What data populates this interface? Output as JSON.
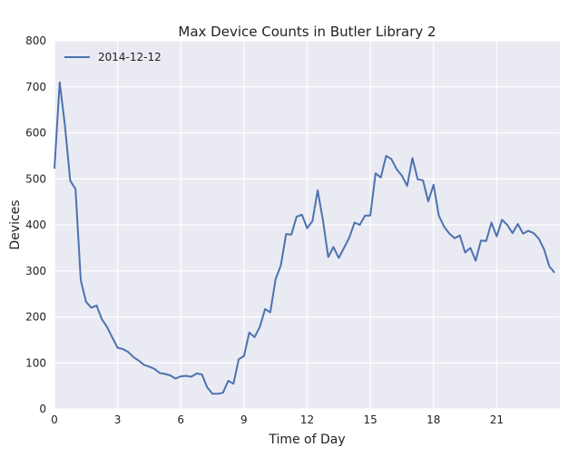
{
  "chart_data": {
    "type": "line",
    "title": "Max Device Counts in Butler Library 2",
    "xlabel": "Time of Day",
    "ylabel": "Devices",
    "xlim": [
      0,
      24
    ],
    "ylim": [
      0,
      800
    ],
    "xticks": [
      0,
      3,
      6,
      9,
      12,
      15,
      18,
      21
    ],
    "xtick_labels": [
      "0",
      "3",
      "6",
      "9",
      "12",
      "15",
      "18",
      "21"
    ],
    "yticks": [
      0,
      100,
      200,
      300,
      400,
      500,
      600,
      700,
      800
    ],
    "ytick_labels": [
      "0",
      "100",
      "200",
      "300",
      "400",
      "500",
      "600",
      "700",
      "800"
    ],
    "grid": true,
    "legend_position": "top-left",
    "colors": {
      "series": "#4c72b0",
      "background": "#eaeaf2",
      "grid": "#ffffff"
    },
    "series": [
      {
        "name": "2014-12-12",
        "x": [
          0.0,
          0.25,
          0.5,
          0.75,
          1.0,
          1.25,
          1.5,
          1.75,
          2.0,
          2.25,
          2.5,
          2.75,
          3.0,
          3.25,
          3.5,
          3.75,
          4.0,
          4.25,
          4.5,
          4.75,
          5.0,
          5.25,
          5.5,
          5.75,
          6.0,
          6.25,
          6.5,
          6.75,
          7.0,
          7.25,
          7.5,
          7.75,
          8.0,
          8.25,
          8.5,
          8.75,
          9.0,
          9.25,
          9.5,
          9.75,
          10.0,
          10.25,
          10.5,
          10.75,
          11.0,
          11.25,
          11.5,
          11.75,
          12.0,
          12.25,
          12.5,
          12.75,
          13.0,
          13.25,
          13.5,
          13.75,
          14.0,
          14.25,
          14.5,
          14.75,
          15.0,
          15.25,
          15.5,
          15.75,
          16.0,
          16.25,
          16.5,
          16.75,
          17.0,
          17.25,
          17.5,
          17.75,
          18.0,
          18.25,
          18.5,
          18.75,
          19.0,
          19.25,
          19.5,
          19.75,
          20.0,
          20.25,
          20.5,
          20.75,
          21.0,
          21.25,
          21.5,
          21.75,
          22.0,
          22.25,
          22.5,
          22.75,
          23.0,
          23.25,
          23.5,
          23.75
        ],
        "values": [
          522,
          710,
          615,
          496,
          478,
          280,
          233,
          220,
          225,
          195,
          178,
          155,
          133,
          130,
          124,
          113,
          105,
          96,
          92,
          87,
          78,
          76,
          73,
          66,
          71,
          72,
          70,
          77,
          75,
          47,
          33,
          33,
          35,
          61,
          55,
          108,
          115,
          166,
          156,
          178,
          217,
          210,
          282,
          312,
          380,
          379,
          418,
          422,
          393,
          408,
          475,
          410,
          330,
          352,
          328,
          350,
          372,
          405,
          400,
          420,
          420,
          512,
          503,
          550,
          543,
          521,
          507,
          485,
          545,
          499,
          497,
          451,
          487,
          420,
          396,
          381,
          371,
          377,
          340,
          350,
          322,
          366,
          365,
          405,
          375,
          411,
          400,
          382,
          402,
          381,
          387,
          382,
          370,
          347,
          310,
          296
        ]
      }
    ]
  }
}
